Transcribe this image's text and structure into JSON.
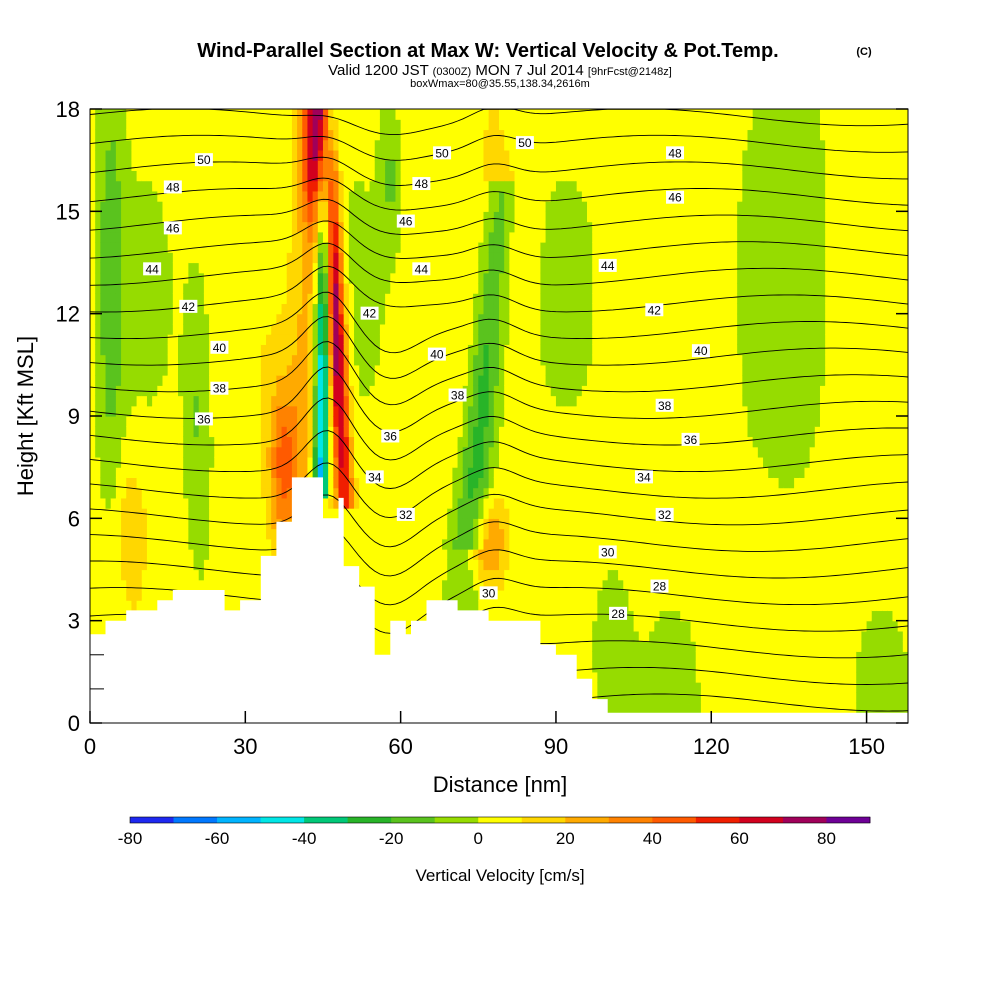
{
  "header": {
    "title_main": "Wind-Parallel Section at Max W: Vertical Velocity & Pot.Temp.",
    "title_copyright": "(C)",
    "subtitle_valid": "Valid 1200 JST",
    "subtitle_z": "(0300Z)",
    "subtitle_date": "MON 7 Jul 2014",
    "subtitle_fcst": "[9hrFcst@2148z]",
    "subtitle_box": "boxWmax=80@35.55,138.34,2616m"
  },
  "chart_data": {
    "type": "heatmap",
    "title": "Wind-Parallel Section at Max W: Vertical Velocity & Pot.Temp.",
    "xlabel": "Distance [nm]",
    "ylabel": "Height [Kft MSL]",
    "xlim": [
      0,
      158
    ],
    "ylim": [
      0,
      18
    ],
    "x_ticks": [
      0,
      30,
      60,
      90,
      120,
      150
    ],
    "x_tick_labels": [
      "0",
      "30",
      "60",
      "90",
      "120",
      "150"
    ],
    "y_ticks": [
      0,
      3,
      6,
      9,
      12,
      15,
      18
    ],
    "y_tick_labels": [
      "0",
      "3",
      "6",
      "9",
      "12",
      "15",
      "18"
    ],
    "colorbar": {
      "label": "Vertical Velocity [cm/s]",
      "bounds": [
        -80,
        90
      ],
      "step": 10,
      "tick_values": [
        -80,
        -60,
        -40,
        -20,
        0,
        20,
        40,
        60,
        80
      ],
      "tick_labels": [
        "-80",
        "-60",
        "-40",
        "-20",
        "0",
        "20",
        "40",
        "60",
        "80"
      ],
      "colors": [
        "#1e28f0",
        "#0078ff",
        "#00b4ff",
        "#00e6e6",
        "#00c878",
        "#28b428",
        "#5ac31e",
        "#96dc00",
        "#ffff00",
        "#ffd700",
        "#ffaa00",
        "#ff8200",
        "#ff5a00",
        "#f01e00",
        "#d2001e",
        "#a0005a",
        "#6e0096"
      ]
    },
    "theta_isentrope_labels": [
      {
        "x": 22,
        "y": 16.5,
        "label": "50"
      },
      {
        "x": 68,
        "y": 16.7,
        "label": "50"
      },
      {
        "x": 84,
        "y": 17.0,
        "label": "50"
      },
      {
        "x": 16,
        "y": 15.7,
        "label": "48"
      },
      {
        "x": 64,
        "y": 15.8,
        "label": "48"
      },
      {
        "x": 113,
        "y": 16.7,
        "label": "48"
      },
      {
        "x": 16,
        "y": 14.5,
        "label": "46"
      },
      {
        "x": 61,
        "y": 14.7,
        "label": "46"
      },
      {
        "x": 113,
        "y": 15.4,
        "label": "46"
      },
      {
        "x": 12,
        "y": 13.3,
        "label": "44"
      },
      {
        "x": 64,
        "y": 13.3,
        "label": "44"
      },
      {
        "x": 100,
        "y": 13.4,
        "label": "44"
      },
      {
        "x": 19,
        "y": 12.2,
        "label": "42"
      },
      {
        "x": 54,
        "y": 12.0,
        "label": "42"
      },
      {
        "x": 109,
        "y": 12.1,
        "label": "42"
      },
      {
        "x": 25,
        "y": 11.0,
        "label": "40"
      },
      {
        "x": 67,
        "y": 10.8,
        "label": "40"
      },
      {
        "x": 118,
        "y": 10.9,
        "label": "40"
      },
      {
        "x": 25,
        "y": 9.8,
        "label": "38"
      },
      {
        "x": 71,
        "y": 9.6,
        "label": "38"
      },
      {
        "x": 111,
        "y": 9.3,
        "label": "38"
      },
      {
        "x": 22,
        "y": 8.9,
        "label": "36"
      },
      {
        "x": 58,
        "y": 8.4,
        "label": "36"
      },
      {
        "x": 116,
        "y": 8.3,
        "label": "36"
      },
      {
        "x": 55,
        "y": 7.2,
        "label": "34"
      },
      {
        "x": 107,
        "y": 7.2,
        "label": "34"
      },
      {
        "x": 61,
        "y": 6.1,
        "label": "32"
      },
      {
        "x": 111,
        "y": 6.1,
        "label": "32"
      },
      {
        "x": 100,
        "y": 5.0,
        "label": "30"
      },
      {
        "x": 77,
        "y": 3.8,
        "label": "30"
      },
      {
        "x": 110,
        "y": 4.0,
        "label": "28"
      },
      {
        "x": 102,
        "y": 3.2,
        "label": "28"
      }
    ],
    "terrain_height_kft": [
      {
        "x": 0,
        "h": 2.6
      },
      {
        "x": 3,
        "h": 3.0
      },
      {
        "x": 7,
        "h": 3.3
      },
      {
        "x": 13,
        "h": 3.6
      },
      {
        "x": 16,
        "h": 3.9
      },
      {
        "x": 26,
        "h": 3.3
      },
      {
        "x": 29,
        "h": 3.6
      },
      {
        "x": 33,
        "h": 4.9
      },
      {
        "x": 36,
        "h": 5.9
      },
      {
        "x": 39,
        "h": 7.2
      },
      {
        "x": 45,
        "h": 6.0
      },
      {
        "x": 48,
        "h": 6.6
      },
      {
        "x": 49,
        "h": 4.6
      },
      {
        "x": 52,
        "h": 4.0
      },
      {
        "x": 55,
        "h": 2.0
      },
      {
        "x": 58,
        "h": 3.0
      },
      {
        "x": 61,
        "h": 2.6
      },
      {
        "x": 62,
        "h": 3.0
      },
      {
        "x": 65,
        "h": 3.6
      },
      {
        "x": 71,
        "h": 3.3
      },
      {
        "x": 77,
        "h": 3.0
      },
      {
        "x": 87,
        "h": 2.3
      },
      {
        "x": 90,
        "h": 2.0
      },
      {
        "x": 94,
        "h": 1.3
      },
      {
        "x": 97,
        "h": 0.7
      },
      {
        "x": 100,
        "h": 0.3
      },
      {
        "x": 158,
        "h": 0.3
      }
    ],
    "velocity_features": [
      {
        "name": "updraft-core",
        "x": 48,
        "y": 12,
        "w": 80
      },
      {
        "name": "updraft-upper",
        "x": 43,
        "y": 17,
        "w": 60
      },
      {
        "name": "downdraft-core",
        "x": 45.5,
        "y": 12,
        "w": -60
      },
      {
        "name": "upslope-warm",
        "x": 37,
        "y": 7.0,
        "w": 40
      },
      {
        "name": "lee-updraft",
        "x": 77,
        "y": 5.2,
        "w": 30
      },
      {
        "name": "lee-downdraft",
        "x": 76,
        "y": 12,
        "w": -30
      },
      {
        "name": "upstream-sink",
        "x": 3,
        "y": 12,
        "w": -20
      },
      {
        "name": "west-sink",
        "x": 22,
        "y": 10,
        "w": -15
      }
    ]
  }
}
